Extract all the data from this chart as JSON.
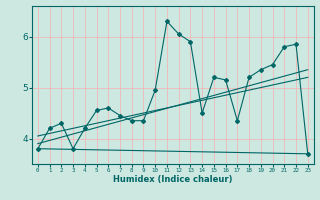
{
  "xlabel": "Humidex (Indice chaleur)",
  "bg_color": "#cce8e0",
  "grid_color": "#f0b8b8",
  "line_color": "#006666",
  "xlim": [
    -0.5,
    23.5
  ],
  "ylim": [
    3.5,
    6.6
  ],
  "yticks": [
    4,
    5,
    6
  ],
  "xticks": [
    0,
    1,
    2,
    3,
    4,
    5,
    6,
    7,
    8,
    9,
    10,
    11,
    12,
    13,
    14,
    15,
    16,
    17,
    18,
    19,
    20,
    21,
    22,
    23
  ],
  "series_main": {
    "x": [
      0,
      1,
      2,
      3,
      4,
      5,
      6,
      7,
      8,
      9,
      10,
      11,
      12,
      13,
      14,
      15,
      16,
      17,
      18,
      19,
      20,
      21,
      22,
      23
    ],
    "y": [
      3.8,
      4.2,
      4.3,
      3.8,
      4.2,
      4.55,
      4.6,
      4.45,
      4.35,
      4.35,
      4.95,
      6.3,
      6.05,
      5.9,
      4.5,
      5.2,
      5.15,
      4.35,
      5.2,
      5.35,
      5.45,
      5.8,
      5.85,
      3.7
    ]
  },
  "trend1": {
    "x": [
      0,
      23
    ],
    "y": [
      3.9,
      5.35
    ]
  },
  "trend2": {
    "x": [
      0,
      23
    ],
    "y": [
      4.05,
      5.2
    ]
  },
  "flat": {
    "x": [
      0,
      23
    ],
    "y": [
      3.8,
      3.7
    ]
  }
}
